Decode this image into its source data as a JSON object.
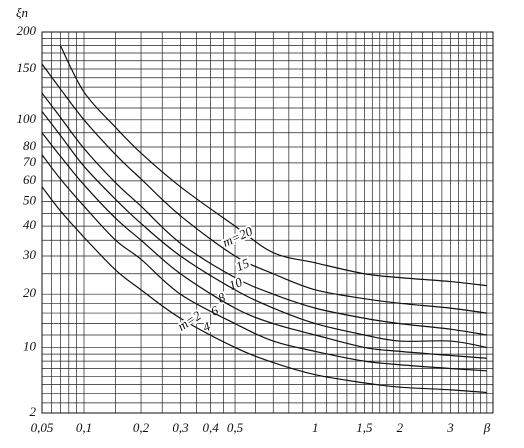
{
  "chart_data": {
    "type": "line",
    "ylabel": "ξn",
    "xlabel": "β",
    "x": [
      0.05,
      0.07,
      0.1,
      0.15,
      0.2,
      0.3,
      0.5,
      0.7,
      1,
      1.5,
      2,
      3,
      4
    ],
    "series": [
      {
        "name": "m=20",
        "color": "#111111",
        "values": [
          null,
          180,
          125,
          94,
          76,
          57,
          40,
          31,
          28,
          25,
          24,
          23,
          22
        ]
      },
      {
        "name": "15",
        "color": "#111111",
        "values": [
          156,
          128,
          100,
          75,
          61,
          44,
          30,
          25,
          21,
          19,
          18,
          17,
          16
        ]
      },
      {
        "name": "10",
        "color": "#111111",
        "values": [
          124,
          102,
          79,
          59,
          48,
          34,
          24,
          20,
          17,
          15,
          14,
          13,
          12
        ]
      },
      {
        "name": "8",
        "color": "#111111",
        "values": [
          107,
          88,
          68,
          51,
          41,
          30,
          21,
          17,
          14,
          12,
          11,
          11,
          10
        ]
      },
      {
        "name": "6",
        "color": "#111111",
        "values": [
          90,
          74,
          58,
          43,
          35,
          25,
          17,
          14,
          12,
          10,
          9.4,
          8.8,
          8.4
        ]
      },
      {
        "name": "4",
        "color": "#111111",
        "values": [
          75,
          61,
          48,
          35,
          29,
          20,
          14,
          11,
          9.4,
          8,
          7.5,
          7,
          6.7
        ]
      },
      {
        "name": "m=2",
        "color": "#111111",
        "values": [
          57,
          46,
          36,
          26,
          21,
          15,
          10,
          7.8,
          6.2,
          5.2,
          4.7,
          4.4,
          4.1
        ]
      }
    ],
    "xlim": [
      0.05,
      4.2
    ],
    "ylim": [
      2,
      200
    ],
    "xticks": [
      {
        "value": 0.05,
        "label": "0,05"
      },
      {
        "value": 0.1,
        "label": "0,1"
      },
      {
        "value": 0.2,
        "label": "0,2"
      },
      {
        "value": 0.3,
        "label": "0,3"
      },
      {
        "value": 0.4,
        "label": "0,4"
      },
      {
        "value": 0.5,
        "label": "0,5"
      },
      1,
      {
        "value": 1.5,
        "label": "1,5"
      },
      2,
      3
    ],
    "yticks": [
      2,
      10,
      20,
      30,
      40,
      50,
      60,
      70,
      80,
      100,
      150,
      200
    ],
    "xgrid": [
      0.06,
      0.07,
      0.08,
      0.09,
      0.15,
      0.25,
      0.35,
      0.45,
      0.6,
      0.7,
      0.8,
      0.9,
      1.1,
      1.2,
      1.3,
      1.4,
      1.6,
      1.7,
      1.8,
      1.9,
      2.2,
      2.4,
      2.6,
      2.8,
      3.2,
      3.4,
      3.6,
      3.8,
      4
    ],
    "ygrid": [
      3,
      4,
      5,
      6,
      7,
      8,
      9,
      12,
      14,
      16,
      18,
      25,
      35,
      45,
      90,
      110,
      120,
      130,
      140,
      160,
      170,
      180,
      190
    ],
    "grid": true
  }
}
